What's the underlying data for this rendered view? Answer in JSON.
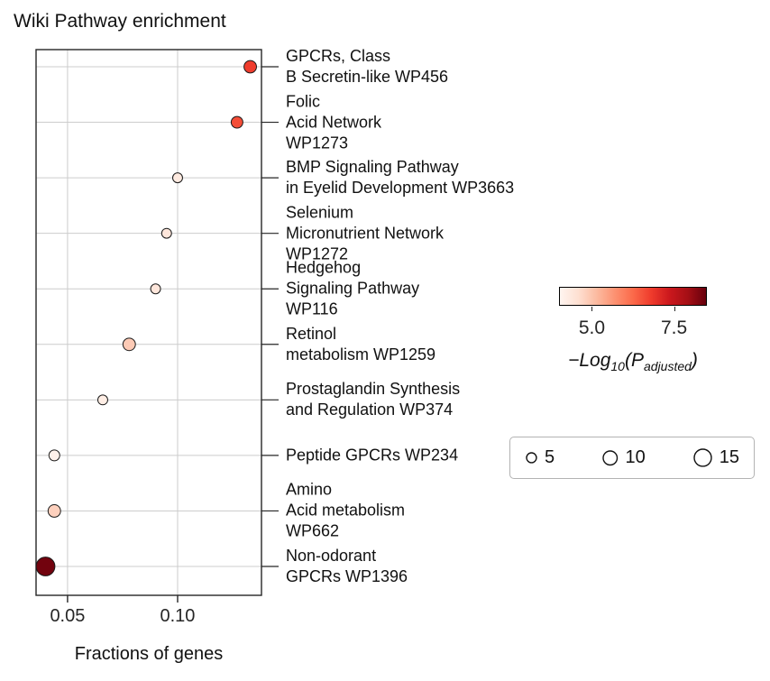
{
  "chart_data": {
    "type": "scatter",
    "title": "Wiki Pathway enrichment",
    "xlabel": "Fractions of genes",
    "xlim": [
      0.0357,
      0.1381
    ],
    "xticks": [
      0.05,
      0.1
    ],
    "xtick_labels": [
      "0.05",
      "0.10"
    ],
    "grid": true,
    "points": [
      {
        "label": "GPCRs, Class\nB Secretin-like WP456",
        "x": 0.133,
        "neg_log10_p_adj": 6.8,
        "count": 8
      },
      {
        "label": "Folic\nAcid Network\nWP1273",
        "x": 0.127,
        "neg_log10_p_adj": 6.6,
        "count": 7
      },
      {
        "label": "BMP Signaling Pathway\nin Eyelid Development WP3663",
        "x": 0.1,
        "neg_log10_p_adj": 4.3,
        "count": 5
      },
      {
        "label": "Selenium\nMicronutrient Network\nWP1272",
        "x": 0.095,
        "neg_log10_p_adj": 4.4,
        "count": 5
      },
      {
        "label": "Hedgehog\nSignaling Pathway\nWP116",
        "x": 0.09,
        "neg_log10_p_adj": 4.4,
        "count": 5
      },
      {
        "label": "Retinol\nmetabolism WP1259",
        "x": 0.078,
        "neg_log10_p_adj": 4.9,
        "count": 8
      },
      {
        "label": "Prostaglandin Synthesis\nand Regulation WP374",
        "x": 0.066,
        "neg_log10_p_adj": 4.2,
        "count": 5
      },
      {
        "label": "Peptide GPCRs WP234",
        "x": 0.044,
        "neg_log10_p_adj": 4.1,
        "count": 6
      },
      {
        "label": "Amino\nAcid metabolism\nWP662",
        "x": 0.044,
        "neg_log10_p_adj": 4.8,
        "count": 8
      },
      {
        "label": "Non-odorant\nGPCRs WP1396",
        "x": 0.04,
        "neg_log10_p_adj": 8.4,
        "count": 18
      }
    ],
    "color_scale": {
      "name": "Reds",
      "domain": [
        4.0,
        8.5
      ],
      "ticks": [
        5.0,
        7.5
      ],
      "tick_labels": [
        "5.0",
        "7.5"
      ],
      "label_parts": {
        "p1": "−Log",
        "s1": "10",
        "p2": "(P",
        "s2": "adjusted",
        "p3": ")"
      },
      "stops": [
        "#fff5f0",
        "#fee0d2",
        "#fcbba1",
        "#fc9272",
        "#fb6a4a",
        "#ef3b2c",
        "#cb181d",
        "#a50f15",
        "#67000d"
      ]
    },
    "size_legend": {
      "values": [
        5,
        10,
        15
      ],
      "labels": [
        "5",
        "10",
        "15"
      ]
    },
    "colors": {
      "grid": "#cccccc",
      "frame": "#262626",
      "dot_outline": "#1a1a1a",
      "legend_circle_fill": "#ffffff"
    }
  }
}
